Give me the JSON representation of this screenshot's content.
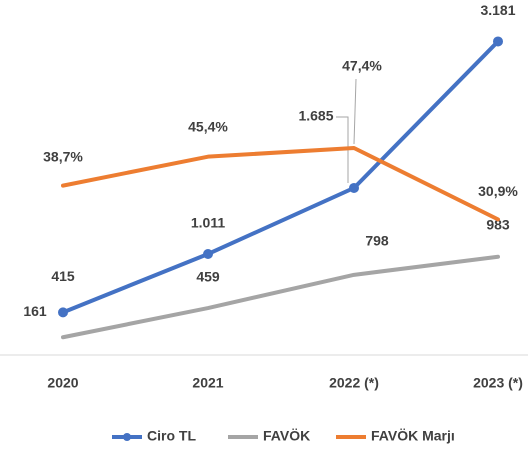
{
  "chart_data": {
    "type": "line",
    "categories": [
      "2020",
      "2021",
      "2022 (*)",
      "2023 (*)"
    ],
    "series": [
      {
        "name": "Ciro TL",
        "color": "#4472c4",
        "values": [
          415,
          1011,
          1685,
          3181
        ],
        "value_labels": [
          "415",
          "1.011",
          "1.685",
          "3.181"
        ]
      },
      {
        "name": "FAVÖK",
        "color": "#a5a5a5",
        "values": [
          161,
          459,
          798,
          983
        ]
      },
      {
        "name": "FAVÖK Marjı",
        "color": "#ed7d31",
        "axis": "y2",
        "values": [
          38.7,
          45.4,
          47.4,
          30.9
        ],
        "value_labels": [
          "38,7%",
          "45,4%",
          "47,4%",
          "30,9%"
        ]
      }
    ],
    "ylim": [
      0,
      3400
    ],
    "y2lim": [
      0,
      77
    ],
    "grid": false,
    "legend": "bottom"
  }
}
